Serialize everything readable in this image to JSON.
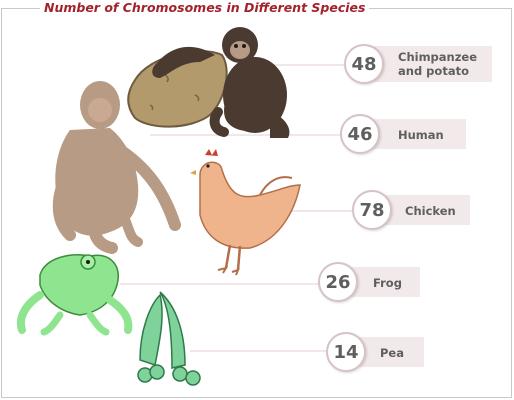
{
  "title": "Number of Chromosomes in Different Species",
  "colors": {
    "title": "#a3222b",
    "frame": "#c9c9c9",
    "label_bar": "#f2e9ea",
    "badge_border": "#d6c3c5",
    "number_text": "#5f5f5f"
  },
  "species": [
    {
      "count": "48",
      "label_line1": "Chimpanzee",
      "label_line2": "and potato",
      "icon": "chimpanzee-and-potato-illustration"
    },
    {
      "count": "46",
      "label_line1": "Human",
      "icon": "human-illustration"
    },
    {
      "count": "78",
      "label_line1": "Chicken",
      "icon": "chicken-illustration"
    },
    {
      "count": "26",
      "label_line1": "Frog",
      "icon": "frog-illustration"
    },
    {
      "count": "14",
      "label_line1": "Pea",
      "icon": "pea-pod-illustration"
    }
  ]
}
